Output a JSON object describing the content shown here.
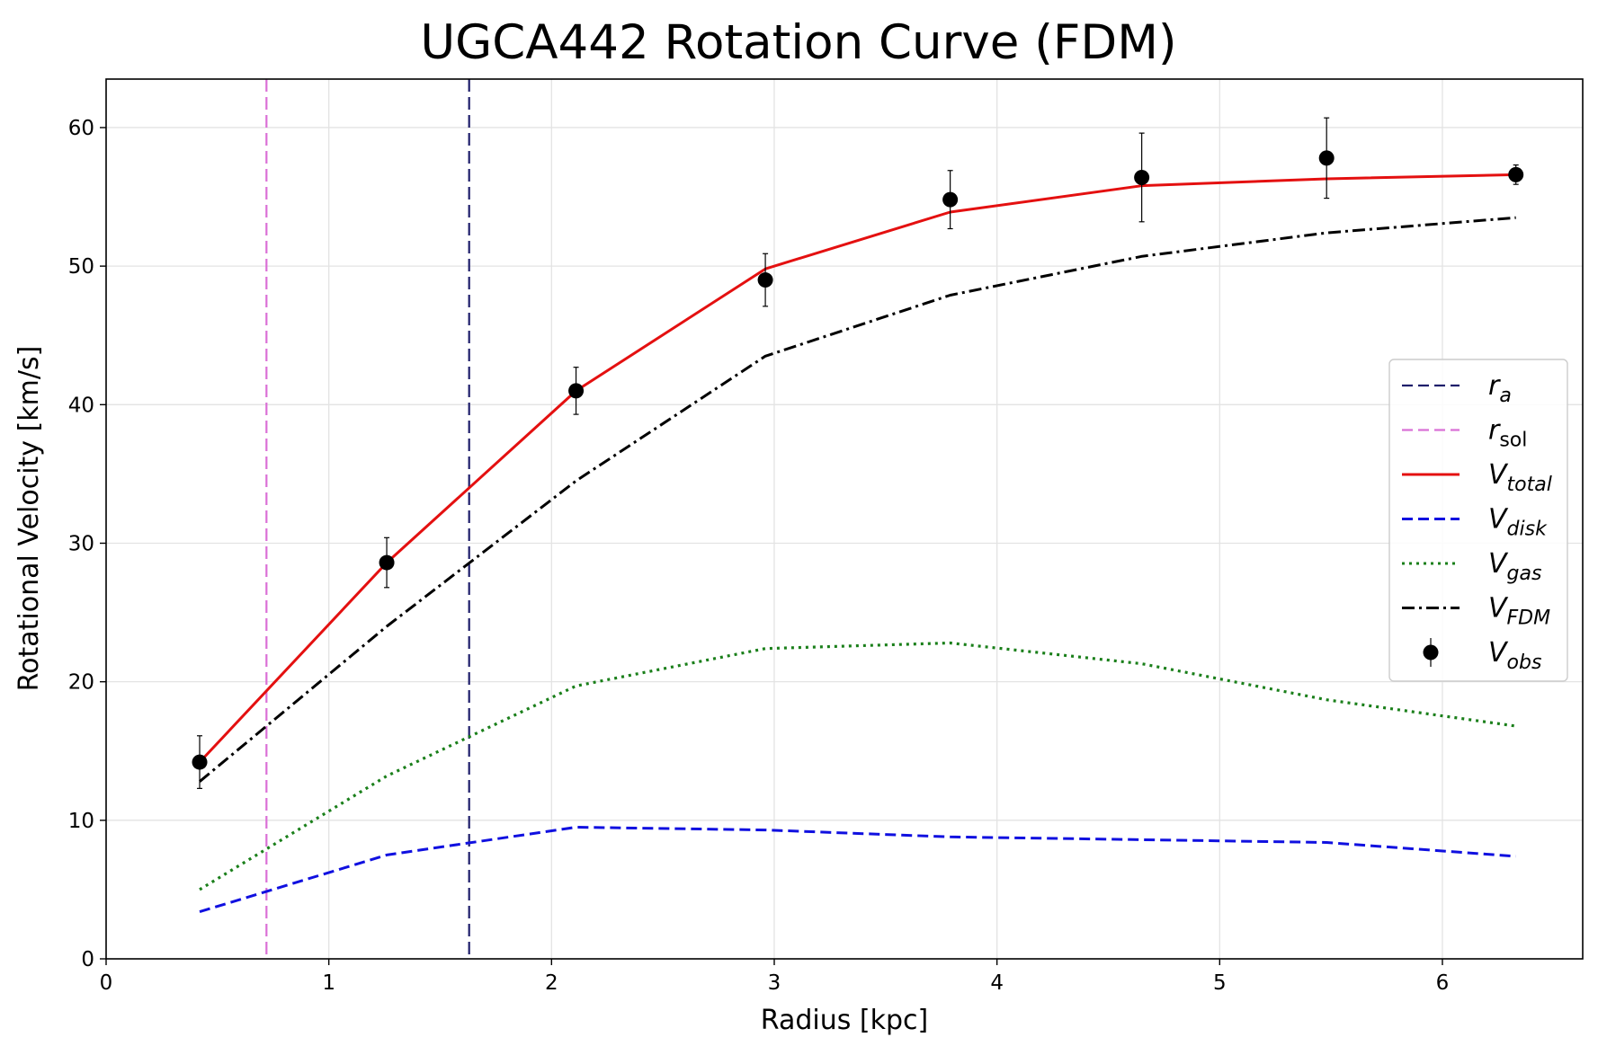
{
  "chart_data": {
    "type": "line",
    "title": "UGCA442 Rotation Curve (FDM)",
    "xlabel": "Radius [kpc]",
    "ylabel": "Rotational Velocity [km/s]",
    "xlim": [
      0,
      6.63
    ],
    "ylim": [
      0,
      63.5
    ],
    "xticks": [
      0,
      1,
      2,
      3,
      4,
      5,
      6
    ],
    "yticks": [
      0,
      10,
      20,
      30,
      40,
      50,
      60
    ],
    "grid": true,
    "legend_position": "center-right",
    "vlines": [
      {
        "name": "r",
        "sub": "a",
        "x": 1.63,
        "color": "#1f1f6b",
        "style": "dashed"
      },
      {
        "name": "r",
        "sub": "sol",
        "x": 0.72,
        "color": "#da70d6",
        "style": "dashed"
      }
    ],
    "x": [
      0.42,
      1.26,
      2.11,
      2.96,
      3.79,
      4.65,
      5.48,
      6.33
    ],
    "series": [
      {
        "name": "V",
        "sub": "total",
        "color": "#e41010",
        "style": "solid",
        "values": [
          14.2,
          28.6,
          41.0,
          49.8,
          53.9,
          55.8,
          56.3,
          56.6
        ]
      },
      {
        "name": "V",
        "sub": "disk",
        "color": "#1010e0",
        "style": "dashed",
        "values": [
          3.4,
          7.5,
          9.5,
          9.3,
          8.8,
          8.6,
          8.4,
          7.4
        ]
      },
      {
        "name": "V",
        "sub": "gas",
        "color": "#1a7f1a",
        "style": "dotted",
        "values": [
          5.0,
          13.2,
          19.7,
          22.4,
          22.8,
          21.3,
          18.7,
          16.8
        ]
      },
      {
        "name": "V",
        "sub": "FDM",
        "color": "#000000",
        "style": "dashdot",
        "values": [
          12.8,
          24.0,
          34.5,
          43.5,
          47.9,
          50.7,
          52.4,
          53.5
        ]
      }
    ],
    "observed": {
      "name": "V",
      "sub": "obs",
      "color": "#000000",
      "values": [
        14.2,
        28.6,
        41.0,
        49.0,
        54.8,
        56.4,
        57.8,
        56.6
      ],
      "errors": [
        1.9,
        1.8,
        1.7,
        1.9,
        2.1,
        3.2,
        2.9,
        0.7
      ]
    }
  }
}
